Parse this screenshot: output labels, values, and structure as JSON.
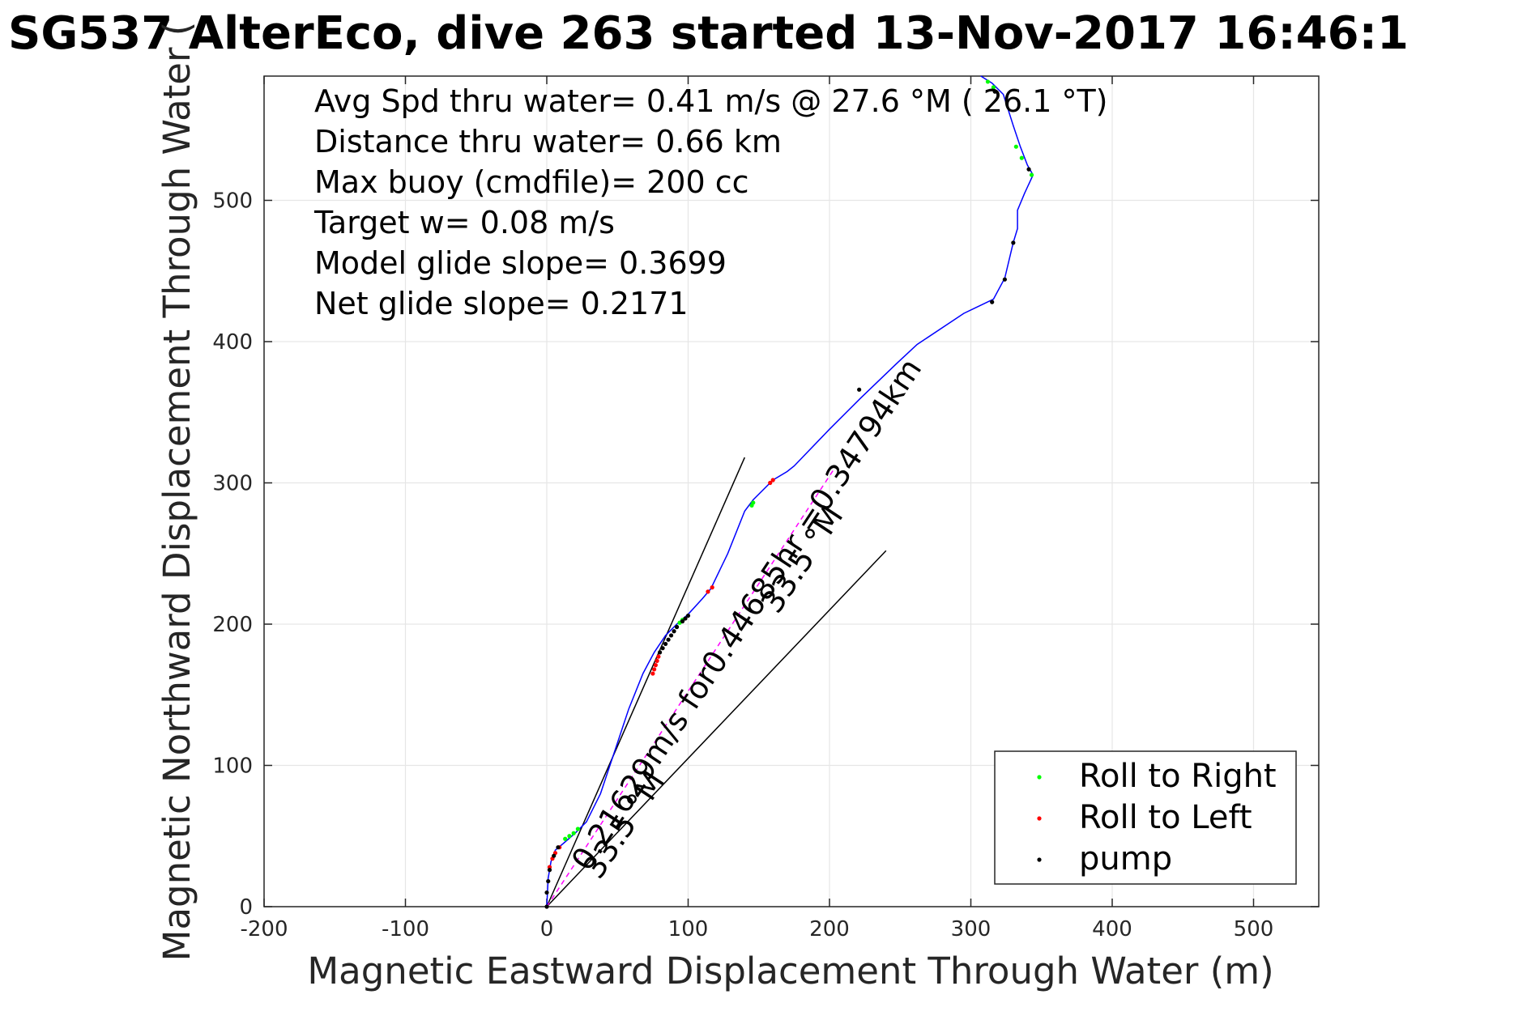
{
  "chart_data": {
    "type": "line",
    "title": "SG537 AlterEco, dive 263 started 13-Nov-2017 16:46:1",
    "xlabel": "Magnetic Eastward Displacement Through Water (m)",
    "ylabel": "Magnetic Northward Displacement Through Water (",
    "xlim": [
      -200,
      540
    ],
    "ylim": [
      0,
      588
    ],
    "xticks": [
      "-200",
      "-100",
      "0",
      "100",
      "200",
      "300",
      "400",
      "500"
    ],
    "yticks": [
      "0",
      "100",
      "200",
      "300",
      "400",
      "500"
    ],
    "grid": true,
    "legend_position": "bottom-right",
    "info_lines": [
      "Avg Spd thru water=  0.41 m/s @  27.6 °M ( 26.1 °T)",
      "Distance thru water=  0.66 km",
      "Max buoy (cmdfile)= 200 cc",
      "Target w= 0.08 m/s",
      "Model glide slope= 0.3699",
      "Net glide slope= 0.2171"
    ],
    "annotations": [
      "0.21629m/s for0.44685hr =0.34794km",
      "33.5 °M",
      "33.5 °M"
    ],
    "track": {
      "name": "track",
      "color": "#0000ff",
      "x": [
        0,
        1,
        3,
        6,
        12,
        20,
        28,
        38,
        48,
        58,
        68,
        76,
        84,
        92,
        100,
        110,
        116,
        128,
        140,
        146,
        160,
        170,
        175,
        200,
        222,
        248,
        262,
        295,
        316,
        324,
        330,
        333,
        333,
        338,
        344,
        340,
        335,
        330,
        323,
        315,
        307
      ],
      "y": [
        0,
        20,
        32,
        40,
        45,
        52,
        60,
        80,
        110,
        140,
        165,
        180,
        192,
        200,
        207,
        218,
        225,
        250,
        280,
        288,
        302,
        308,
        312,
        338,
        360,
        385,
        398,
        420,
        430,
        445,
        470,
        480,
        493,
        505,
        518,
        525,
        538,
        553,
        575,
        583,
        588
      ]
    },
    "series": [
      {
        "name": "Roll to Right",
        "color": "#00ff00",
        "points": [
          [
            13,
            48
          ],
          [
            16,
            50
          ],
          [
            19,
            52
          ],
          [
            22,
            55
          ],
          [
            145,
            284
          ],
          [
            146,
            286
          ],
          [
            92,
            198
          ],
          [
            94,
            201
          ],
          [
            96,
            203
          ],
          [
            332,
            538
          ],
          [
            336,
            530
          ],
          [
            343,
            518
          ],
          [
            312,
            584
          ],
          [
            316,
            580
          ]
        ]
      },
      {
        "name": "Roll to Left",
        "color": "#ff0000",
        "points": [
          [
            75,
            165
          ],
          [
            76,
            168
          ],
          [
            77,
            171
          ],
          [
            78,
            174
          ],
          [
            79,
            177
          ],
          [
            114,
            223
          ],
          [
            117,
            226
          ],
          [
            158,
            300
          ],
          [
            160,
            302
          ],
          [
            2,
            28
          ],
          [
            4,
            34
          ],
          [
            6,
            38
          ],
          [
            9,
            42
          ]
        ]
      },
      {
        "name": "pump",
        "color": "#000000",
        "points": [
          [
            0,
            0
          ],
          [
            0,
            10
          ],
          [
            1,
            18
          ],
          [
            2,
            26
          ],
          [
            5,
            36
          ],
          [
            8,
            42
          ],
          [
            80,
            180
          ],
          [
            82,
            183
          ],
          [
            84,
            186
          ],
          [
            86,
            189
          ],
          [
            88,
            192
          ],
          [
            90,
            195
          ],
          [
            92,
            198
          ],
          [
            96,
            202
          ],
          [
            98,
            204
          ],
          [
            100,
            206
          ],
          [
            221,
            366
          ],
          [
            315,
            428
          ],
          [
            324,
            444
          ],
          [
            330,
            470
          ],
          [
            341,
            522
          ],
          [
            317,
            577
          ]
        ]
      }
    ],
    "heading_lines": {
      "color": "#000000",
      "endpoints": [
        [
          0,
          0,
          140,
          318
        ],
        [
          0,
          0,
          240,
          252
        ]
      ]
    },
    "dashed_bearing": {
      "color": "#ff00ff",
      "endpoints": [
        [
          0,
          0,
          204,
          311
        ]
      ]
    }
  }
}
